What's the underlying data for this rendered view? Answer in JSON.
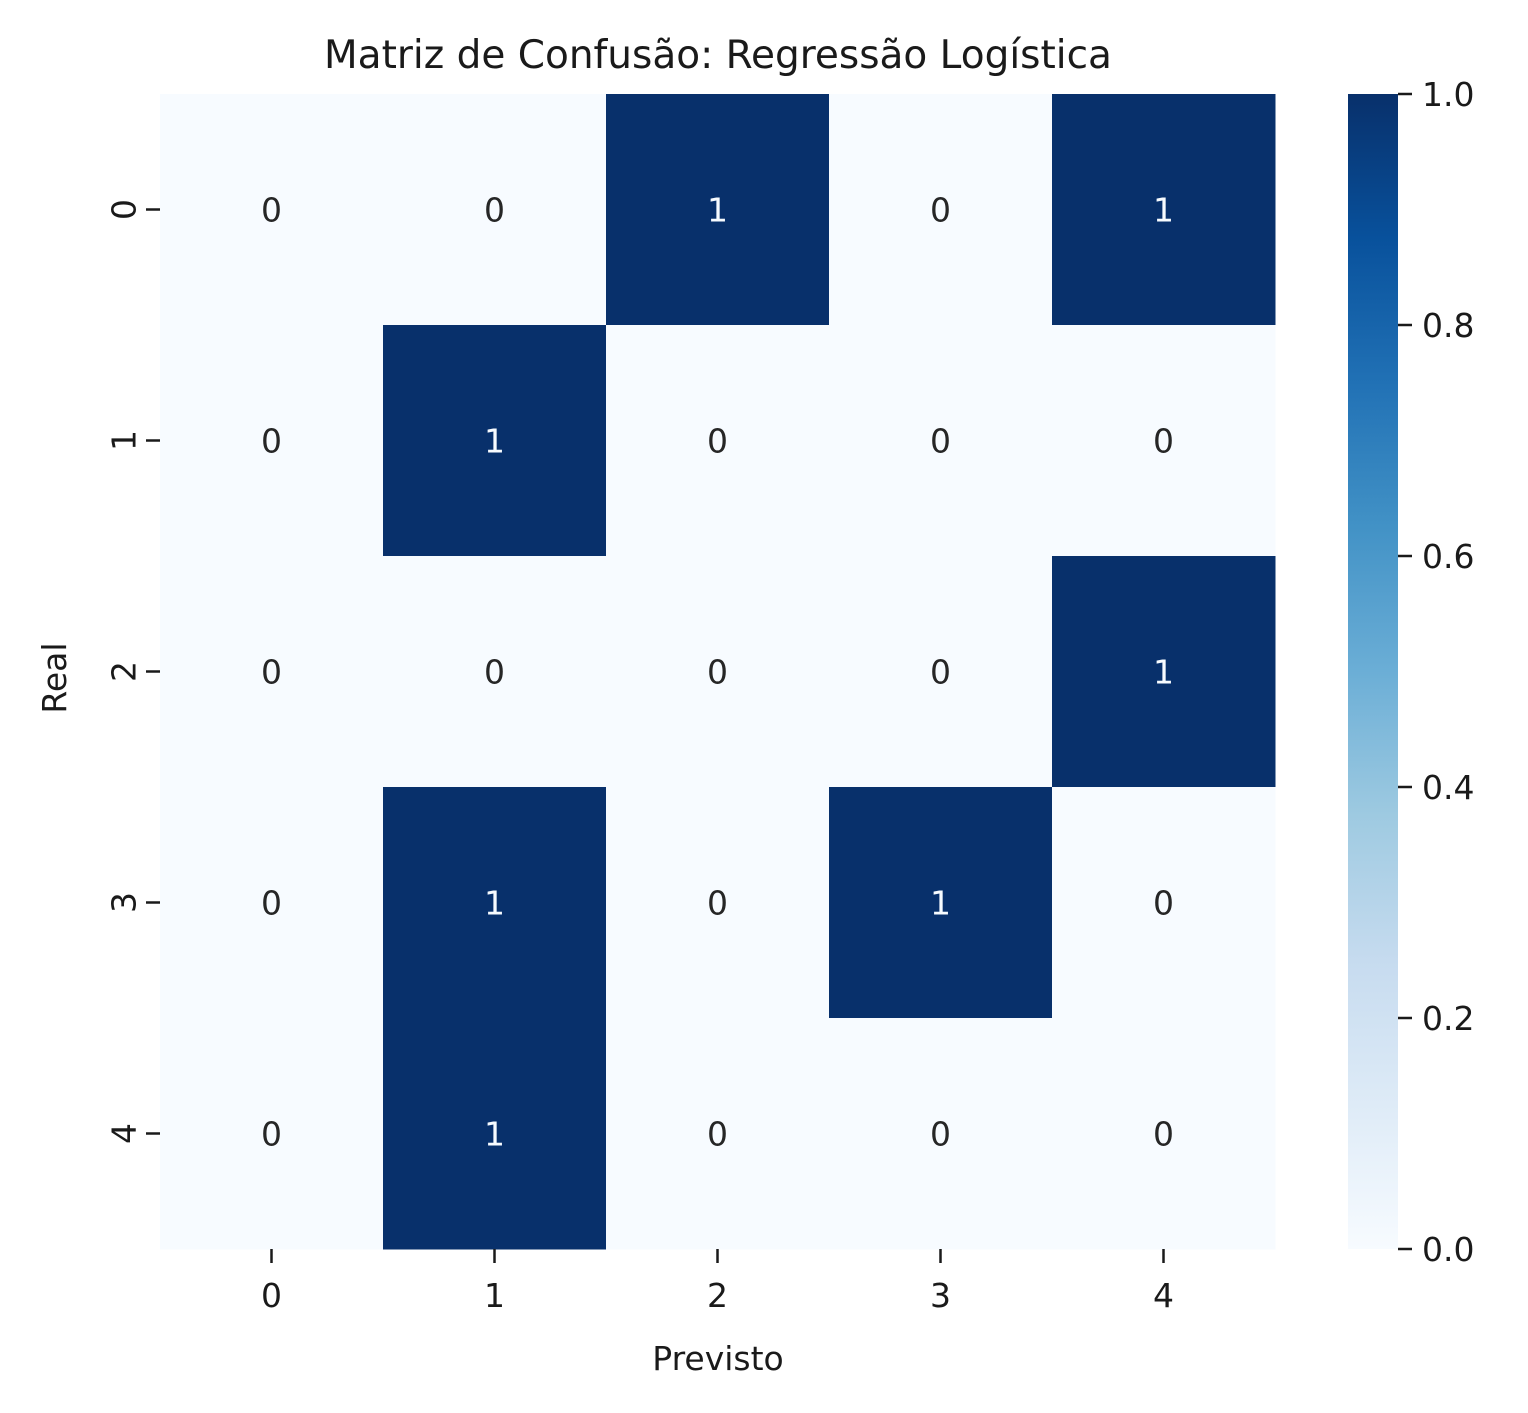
{
  "chart_data": {
    "type": "heatmap",
    "title": "Matriz de Confusão: Regressão Logística",
    "xlabel": "Previsto",
    "ylabel": "Real",
    "x_categories": [
      "0",
      "1",
      "2",
      "3",
      "4"
    ],
    "y_categories": [
      "0",
      "1",
      "2",
      "3",
      "4"
    ],
    "values": [
      [
        0,
        0,
        1,
        0,
        1
      ],
      [
        0,
        1,
        0,
        0,
        0
      ],
      [
        0,
        0,
        0,
        0,
        1
      ],
      [
        0,
        1,
        0,
        1,
        0
      ],
      [
        0,
        1,
        0,
        0,
        0
      ]
    ],
    "colormap": "Blues",
    "vmin": 0,
    "vmax": 1,
    "colorbar_ticks": [
      "0.0",
      "0.2",
      "0.4",
      "0.6",
      "0.8",
      "1.0"
    ],
    "colors": {
      "low": "#f7fbff",
      "high": "#08306b",
      "annotation_dark_text": "#262626",
      "annotation_light_text": "#f7fbff"
    }
  }
}
